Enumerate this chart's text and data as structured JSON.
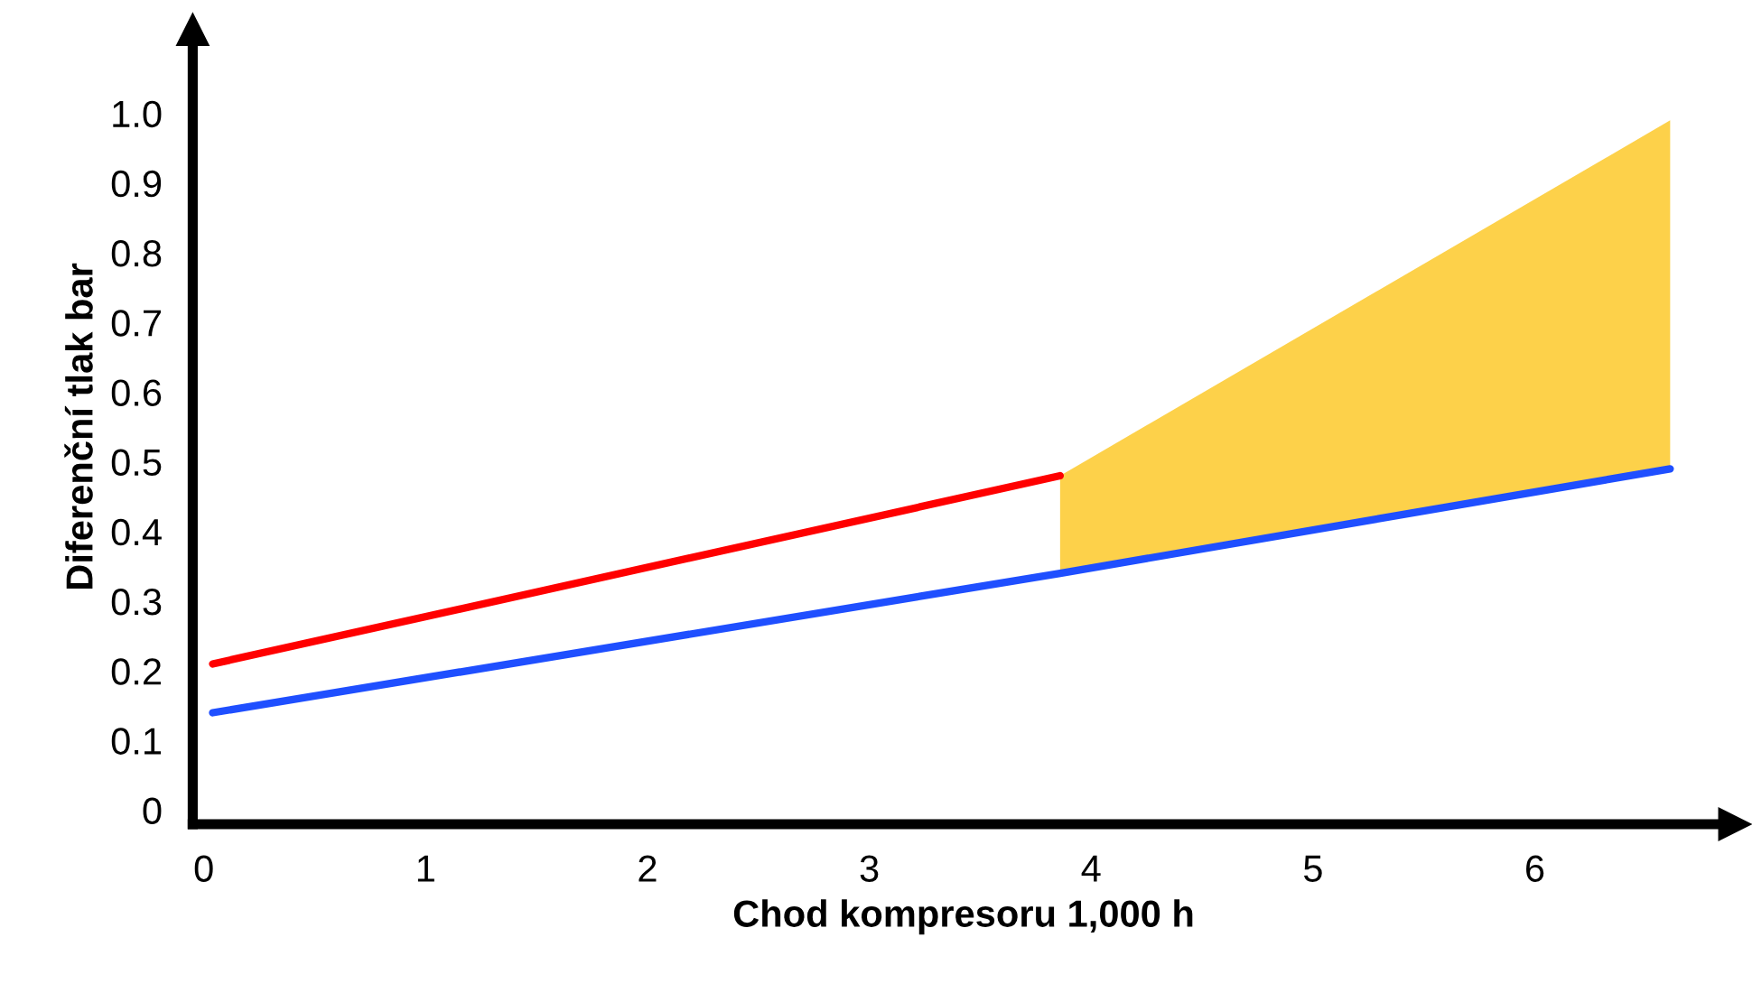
{
  "chart_data": {
    "type": "line",
    "xlabel": "Chod kompresoru 1,000 h",
    "ylabel": "Diferenční tlak bar",
    "xlim": [
      -0.05,
      6.9
    ],
    "ylim": [
      -0.02,
      1.12
    ],
    "xticks": [
      0,
      1,
      2,
      3,
      4,
      5,
      6
    ],
    "yticks": [
      {
        "value": 0,
        "label": "0"
      },
      0.1,
      0.2,
      0.3,
      0.4,
      0.5,
      0.6,
      0.7,
      0.8,
      0.9,
      {
        "value": 1.0,
        "label": "1.0"
      }
    ],
    "grid": false,
    "legend": false,
    "series": [
      {
        "color": "#ff0000",
        "x": [
          0.04,
          3.86
        ],
        "values": [
          0.21,
          0.48
        ]
      },
      {
        "color": "#1f4fff",
        "x": [
          0.04,
          3.86,
          6.61
        ],
        "values": [
          0.14,
          0.34,
          0.49
        ],
        "lower": [
          null,
          0.34,
          0.49
        ],
        "upper": [
          null,
          0.48,
          0.99
        ]
      }
    ]
  }
}
